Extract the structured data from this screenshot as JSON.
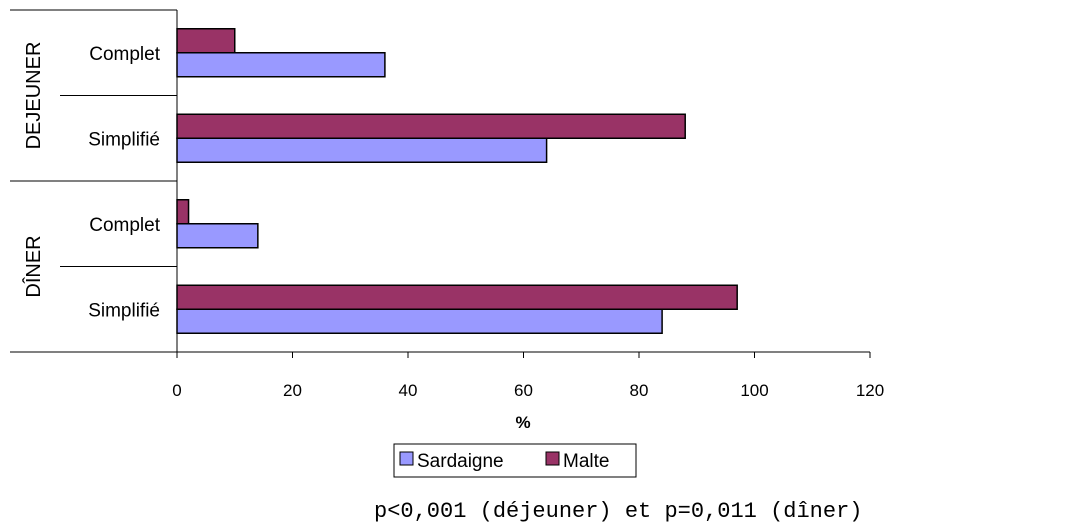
{
  "chart_data": {
    "type": "bar",
    "orientation": "horizontal",
    "groups": [
      {
        "name": "DEJEUNER",
        "categories": [
          "Complet",
          "Simplifié"
        ]
      },
      {
        "name": "DÎNER",
        "categories": [
          "Complet",
          "Simplifié"
        ]
      }
    ],
    "series": [
      {
        "name": "Sardaigne",
        "color": "#9999ff",
        "values": [
          36,
          64,
          14,
          84
        ]
      },
      {
        "name": "Malte",
        "color": "#993366",
        "values": [
          10,
          88,
          2,
          97
        ]
      }
    ],
    "xlabel": "%",
    "xlim": [
      0,
      120
    ],
    "xticks": [
      0,
      20,
      40,
      60,
      80,
      100,
      120
    ],
    "legend_position": "bottom",
    "grid": false,
    "annotation": "p<0,001 (déjeuner) et p=0,011 (dîner)"
  }
}
